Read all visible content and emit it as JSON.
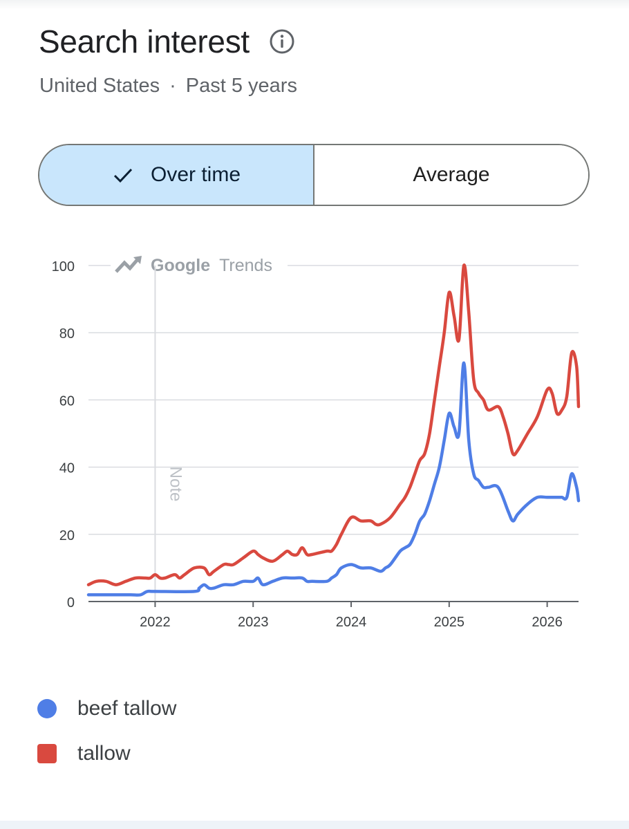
{
  "header": {
    "title": "Search interest",
    "info_icon": "info-icon",
    "region": "United States",
    "separator": "·",
    "period": "Past 5 years"
  },
  "toggle": {
    "over_time_label": "Over time",
    "average_label": "Average",
    "selected": "over_time",
    "check_icon": "check-icon",
    "selected_color": "#c9e6fc"
  },
  "watermark": {
    "brand_first": "Google",
    "brand_second": "Trends",
    "icon": "trending-up-icon"
  },
  "note_label": "Note",
  "chart_data": {
    "type": "line",
    "x_unit": "year",
    "xlim": [
      2021.32,
      2026.32
    ],
    "ylim": [
      0,
      100
    ],
    "y_ticks": [
      0,
      20,
      40,
      60,
      80,
      100
    ],
    "x_ticks": [
      "2022",
      "2023",
      "2024",
      "2025",
      "2026"
    ],
    "grid": true,
    "legend_position": "bottom-left",
    "note_marker_x": 2022.0,
    "series": [
      {
        "name": "beef tallow",
        "color": "#4f7ee6",
        "x": [
          2021.32,
          2021.55,
          2021.75,
          2021.85,
          2021.92,
          2022.0,
          2022.4,
          2022.45,
          2022.5,
          2022.55,
          2022.6,
          2022.7,
          2022.8,
          2022.9,
          2023.0,
          2023.05,
          2023.1,
          2023.2,
          2023.3,
          2023.4,
          2023.5,
          2023.55,
          2023.6,
          2023.75,
          2023.8,
          2023.85,
          2023.9,
          2024.0,
          2024.1,
          2024.2,
          2024.3,
          2024.35,
          2024.4,
          2024.5,
          2024.55,
          2024.6,
          2024.65,
          2024.7,
          2024.75,
          2024.8,
          2024.85,
          2024.9,
          2024.95,
          2025.0,
          2025.05,
          2025.1,
          2025.15,
          2025.2,
          2025.25,
          2025.3,
          2025.35,
          2025.4,
          2025.5,
          2025.6,
          2025.65,
          2025.7,
          2025.8,
          2025.9,
          2026.0,
          2026.1,
          2026.15,
          2026.2,
          2026.25,
          2026.3,
          2026.32
        ],
        "y": [
          2,
          2,
          2,
          2,
          3,
          3,
          3,
          4,
          5,
          4,
          4,
          5,
          5,
          6,
          6,
          7,
          5,
          6,
          7,
          7,
          7,
          6,
          6,
          6,
          7,
          8,
          10,
          11,
          10,
          10,
          9,
          10,
          11,
          15,
          16,
          17,
          20,
          24,
          26,
          30,
          35,
          40,
          48,
          56,
          52,
          50,
          71,
          48,
          38,
          36,
          34,
          34,
          34,
          27,
          24,
          26,
          29,
          31,
          31,
          31,
          31,
          31,
          38,
          34,
          30
        ]
      },
      {
        "name": "tallow",
        "color": "#d9493f",
        "x": [
          2021.32,
          2021.4,
          2021.5,
          2021.6,
          2021.7,
          2021.8,
          2021.9,
          2021.95,
          2022.0,
          2022.05,
          2022.1,
          2022.2,
          2022.25,
          2022.3,
          2022.4,
          2022.5,
          2022.55,
          2022.6,
          2022.7,
          2022.75,
          2022.8,
          2022.9,
          2023.0,
          2023.05,
          2023.1,
          2023.2,
          2023.3,
          2023.35,
          2023.4,
          2023.45,
          2023.5,
          2023.55,
          2023.6,
          2023.75,
          2023.8,
          2023.85,
          2023.9,
          2024.0,
          2024.1,
          2024.2,
          2024.25,
          2024.3,
          2024.4,
          2024.5,
          2024.55,
          2024.6,
          2024.65,
          2024.7,
          2024.75,
          2024.8,
          2024.85,
          2024.9,
          2024.95,
          2025.0,
          2025.05,
          2025.1,
          2025.15,
          2025.2,
          2025.25,
          2025.3,
          2025.35,
          2025.4,
          2025.5,
          2025.55,
          2025.6,
          2025.65,
          2025.7,
          2025.8,
          2025.9,
          2026.0,
          2026.05,
          2026.1,
          2026.15,
          2026.2,
          2026.25,
          2026.3,
          2026.32
        ],
        "y": [
          5,
          6,
          6,
          5,
          6,
          7,
          7,
          7,
          8,
          7,
          7,
          8,
          7,
          8,
          10,
          10,
          8,
          9,
          11,
          11,
          11,
          13,
          15,
          14,
          13,
          12,
          14,
          15,
          14,
          14,
          16,
          14,
          14,
          15,
          15,
          17,
          20,
          25,
          24,
          24,
          23,
          23,
          25,
          29,
          31,
          34,
          38,
          42,
          44,
          50,
          60,
          70,
          80,
          92,
          85,
          78,
          100,
          86,
          66,
          62,
          60,
          57,
          58,
          55,
          50,
          44,
          45,
          50,
          55,
          63,
          62,
          56,
          57,
          61,
          74,
          70,
          58
        ]
      }
    ]
  }
}
